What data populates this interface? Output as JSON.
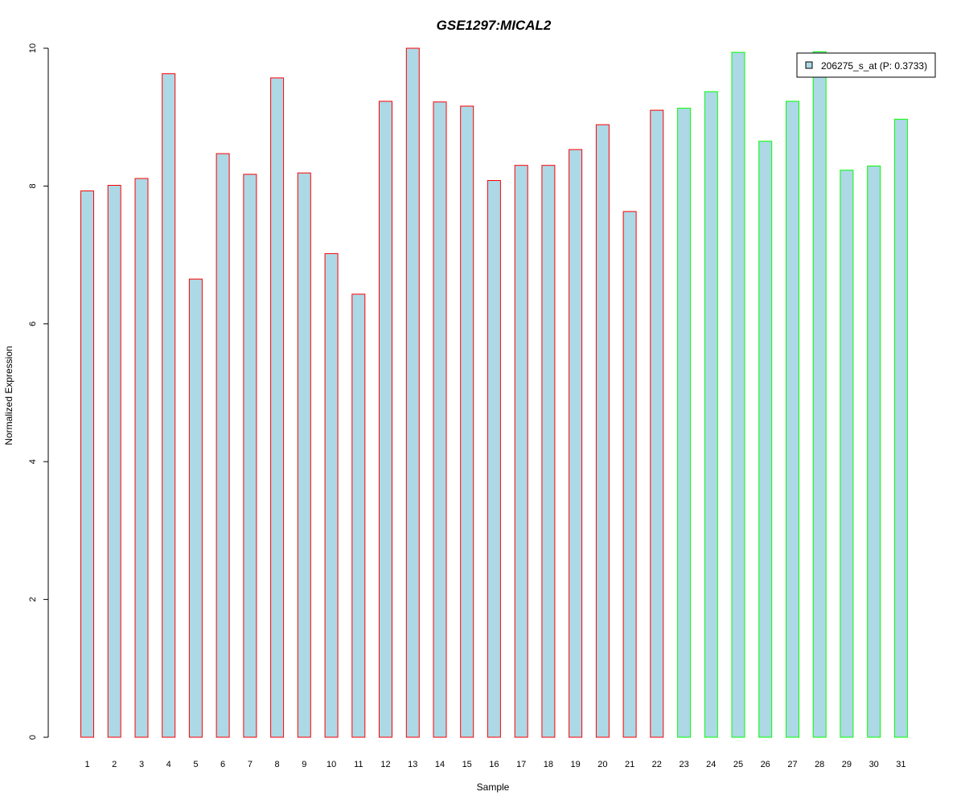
{
  "chart_data": {
    "type": "bar",
    "title": "GSE1297:MICAL2",
    "xlabel": "Sample",
    "ylabel": "Normalized Expression",
    "ylim": [
      0,
      10
    ],
    "yticks": [
      0,
      2,
      4,
      6,
      8,
      10
    ],
    "categories": [
      "1",
      "2",
      "3",
      "4",
      "5",
      "6",
      "7",
      "8",
      "9",
      "10",
      "11",
      "12",
      "13",
      "14",
      "15",
      "16",
      "17",
      "18",
      "19",
      "20",
      "21",
      "22",
      "23",
      "24",
      "25",
      "26",
      "27",
      "28",
      "29",
      "30",
      "31"
    ],
    "series": [
      {
        "name": "206275_s_at (P: 0.3733)",
        "values": [
          7.93,
          8.01,
          8.11,
          9.63,
          6.65,
          8.47,
          8.17,
          9.57,
          8.19,
          7.02,
          6.43,
          9.23,
          10.0,
          9.22,
          9.16,
          8.08,
          8.3,
          8.3,
          8.53,
          8.89,
          7.63,
          9.1,
          9.13,
          9.37,
          9.94,
          8.65,
          9.23,
          9.95,
          8.23,
          8.29,
          8.97
        ]
      }
    ],
    "groups": [
      {
        "border_color": "#ff0000",
        "from": 1,
        "to": 22
      },
      {
        "border_color": "#00ff00",
        "from": 23,
        "to": 31
      }
    ],
    "bar_fill": "#add8e6",
    "title_color": "#0000cc",
    "legend": {
      "label": "206275_s_at (P: 0.3733)",
      "placement": "top-right"
    },
    "grid": false
  }
}
